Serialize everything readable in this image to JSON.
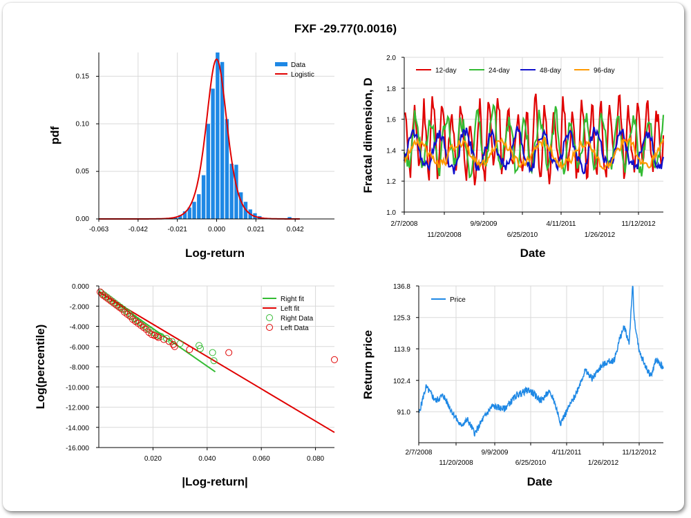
{
  "title": "FXF -29.77(0.0016)",
  "chart_data": [
    {
      "id": "pdf",
      "type": "bar",
      "xlabel": "Log-return",
      "ylabel": "pdf",
      "xticks": [
        "-0.063",
        "-0.042",
        "-0.021",
        "0.000",
        "0.021",
        "0.042"
      ],
      "xlim": [
        -0.063,
        0.063
      ],
      "ylim": [
        0,
        0.175
      ],
      "yticks": [
        "0.00",
        "0.05",
        "0.10",
        "0.15"
      ],
      "legend": [
        "Data",
        "Logistic"
      ],
      "series_colors": {
        "data": "#1e88e5",
        "fit": "#e00000"
      },
      "bars": [
        [
          -0.0245,
          0.001
        ],
        [
          -0.022,
          0.002
        ],
        [
          -0.0195,
          0.004
        ],
        [
          -0.017,
          0.008
        ],
        [
          -0.0145,
          0.012
        ],
        [
          -0.012,
          0.018
        ],
        [
          -0.0095,
          0.026
        ],
        [
          -0.007,
          0.046
        ],
        [
          -0.0045,
          0.1
        ],
        [
          -0.002,
          0.137
        ],
        [
          0.0005,
          0.175
        ],
        [
          0.003,
          0.165
        ],
        [
          0.0055,
          0.105
        ],
        [
          0.008,
          0.058
        ],
        [
          0.0105,
          0.057
        ],
        [
          0.013,
          0.028
        ],
        [
          0.0155,
          0.018
        ],
        [
          0.018,
          0.01
        ],
        [
          0.0205,
          0.006
        ],
        [
          0.023,
          0.003
        ],
        [
          0.0255,
          0.001
        ],
        [
          0.028,
          0.001
        ],
        [
          0.039,
          0.002
        ]
      ],
      "fit_mu": 0.0,
      "fit_peak": 0.168,
      "fit_scale": 0.0037
    },
    {
      "id": "fractal",
      "type": "line",
      "xlabel": "Date",
      "ylabel": "Fractal dimension, D",
      "ylim": [
        1.0,
        2.0
      ],
      "yticks": [
        "1.0",
        "1.2",
        "1.4",
        "1.6",
        "1.8",
        "2.0"
      ],
      "xticks_top": [
        "2/7/2008",
        "9/9/2009",
        "4/11/2011",
        "11/12/2012"
      ],
      "xticks_bottom": [
        "11/20/2008",
        "6/25/2010",
        "1/26/2012"
      ],
      "series": [
        {
          "name": "12-day",
          "color": "#e00000",
          "base": 1.47,
          "amp": 0.3,
          "seed": 3,
          "period": 9
        },
        {
          "name": "24-day",
          "color": "#33bb33",
          "base": 1.45,
          "amp": 0.22,
          "seed": 7,
          "period": 15
        },
        {
          "name": "48-day",
          "color": "#1010cc",
          "base": 1.4,
          "amp": 0.15,
          "seed": 11,
          "period": 25
        },
        {
          "name": "96-day",
          "color": "#ff9900",
          "base": 1.38,
          "amp": 0.1,
          "seed": 17,
          "period": 40
        }
      ]
    },
    {
      "id": "loglog",
      "type": "scatter",
      "xlabel": "|Log-return|",
      "ylabel": "Log(percentile)",
      "xlim": [
        0,
        0.087
      ],
      "ylim": [
        -16,
        0
      ],
      "xticks": [
        "0.020",
        "0.040",
        "0.060",
        "0.080"
      ],
      "yticks": [
        "0.000",
        "-2.000",
        "-4.000",
        "-6.000",
        "-8.000",
        "-10.000",
        "-12.000",
        "-14.000",
        "-16.000"
      ],
      "legend": [
        "Right fit",
        "Left fit",
        "Right Data",
        "Left Data"
      ],
      "right_fit": [
        [
          0.0,
          -0.5
        ],
        [
          0.043,
          -8.5
        ]
      ],
      "left_fit": [
        [
          0.0,
          -0.6
        ],
        [
          0.087,
          -14.5
        ]
      ],
      "right_data": [
        [
          0.001,
          -0.7
        ],
        [
          0.002,
          -0.9
        ],
        [
          0.003,
          -1.1
        ],
        [
          0.004,
          -1.3
        ],
        [
          0.005,
          -1.5
        ],
        [
          0.006,
          -1.7
        ],
        [
          0.007,
          -1.9
        ],
        [
          0.008,
          -2.1
        ],
        [
          0.009,
          -2.3
        ],
        [
          0.01,
          -2.5
        ],
        [
          0.011,
          -2.7
        ],
        [
          0.012,
          -3.0
        ],
        [
          0.013,
          -3.2
        ],
        [
          0.014,
          -3.4
        ],
        [
          0.015,
          -3.6
        ],
        [
          0.016,
          -3.8
        ],
        [
          0.017,
          -4.0
        ],
        [
          0.018,
          -4.2
        ],
        [
          0.019,
          -4.4
        ],
        [
          0.02,
          -4.6
        ],
        [
          0.021,
          -4.8
        ],
        [
          0.022,
          -4.9
        ],
        [
          0.023,
          -5.0
        ],
        [
          0.025,
          -5.2
        ],
        [
          0.027,
          -5.5
        ],
        [
          0.03,
          -5.7
        ],
        [
          0.037,
          -5.9
        ],
        [
          0.0375,
          -6.2
        ],
        [
          0.042,
          -6.6
        ],
        [
          0.0425,
          -7.4
        ]
      ],
      "left_data": [
        [
          0.0005,
          -0.6
        ],
        [
          0.0015,
          -0.9
        ],
        [
          0.0025,
          -1.1
        ],
        [
          0.0035,
          -1.3
        ],
        [
          0.0045,
          -1.5
        ],
        [
          0.0055,
          -1.7
        ],
        [
          0.0065,
          -1.9
        ],
        [
          0.0075,
          -2.1
        ],
        [
          0.0085,
          -2.3
        ],
        [
          0.0095,
          -2.6
        ],
        [
          0.0105,
          -2.8
        ],
        [
          0.0115,
          -3.0
        ],
        [
          0.0125,
          -3.3
        ],
        [
          0.0135,
          -3.5
        ],
        [
          0.0145,
          -3.7
        ],
        [
          0.0155,
          -3.9
        ],
        [
          0.0165,
          -4.1
        ],
        [
          0.0175,
          -4.3
        ],
        [
          0.0185,
          -4.6
        ],
        [
          0.0195,
          -4.8
        ],
        [
          0.0205,
          -4.9
        ],
        [
          0.0215,
          -5.0
        ],
        [
          0.022,
          -5.1
        ],
        [
          0.024,
          -5.3
        ],
        [
          0.026,
          -5.5
        ],
        [
          0.0275,
          -5.8
        ],
        [
          0.028,
          -6.0
        ],
        [
          0.0335,
          -6.3
        ],
        [
          0.048,
          -6.6
        ],
        [
          0.087,
          -7.3
        ]
      ]
    },
    {
      "id": "price",
      "type": "line",
      "xlabel": "Date",
      "ylabel": "Return price",
      "ylim": [
        79.7,
        136.8
      ],
      "yticks": [
        "136.8",
        "125.3",
        "113.9",
        "102.4",
        "91.0"
      ],
      "xticks_top": [
        "2/7/2008",
        "9/9/2009",
        "4/11/2011",
        "11/12/2012"
      ],
      "xticks_bottom": [
        "11/20/2008",
        "6/25/2010",
        "1/26/2012"
      ],
      "legend": [
        "Price"
      ],
      "color": "#1e88e5",
      "anchors": [
        [
          0,
          90
        ],
        [
          0.02,
          97
        ],
        [
          0.03,
          100
        ],
        [
          0.07,
          95
        ],
        [
          0.1,
          97
        ],
        [
          0.13,
          92
        ],
        [
          0.17,
          86
        ],
        [
          0.2,
          88
        ],
        [
          0.23,
          83
        ],
        [
          0.26,
          88
        ],
        [
          0.3,
          93
        ],
        [
          0.35,
          92
        ],
        [
          0.4,
          97
        ],
        [
          0.45,
          99
        ],
        [
          0.5,
          95
        ],
        [
          0.53,
          98
        ],
        [
          0.55,
          96
        ],
        [
          0.58,
          87
        ],
        [
          0.61,
          92
        ],
        [
          0.64,
          97
        ],
        [
          0.68,
          106
        ],
        [
          0.71,
          103
        ],
        [
          0.74,
          107
        ],
        [
          0.77,
          109
        ],
        [
          0.8,
          110
        ],
        [
          0.82,
          117
        ],
        [
          0.84,
          122
        ],
        [
          0.86,
          116
        ],
        [
          0.87,
          131
        ],
        [
          0.875,
          137
        ],
        [
          0.88,
          126
        ],
        [
          0.9,
          113
        ],
        [
          0.93,
          107
        ],
        [
          0.95,
          104
        ],
        [
          0.97,
          110
        ],
        [
          1.0,
          107
        ]
      ]
    }
  ]
}
